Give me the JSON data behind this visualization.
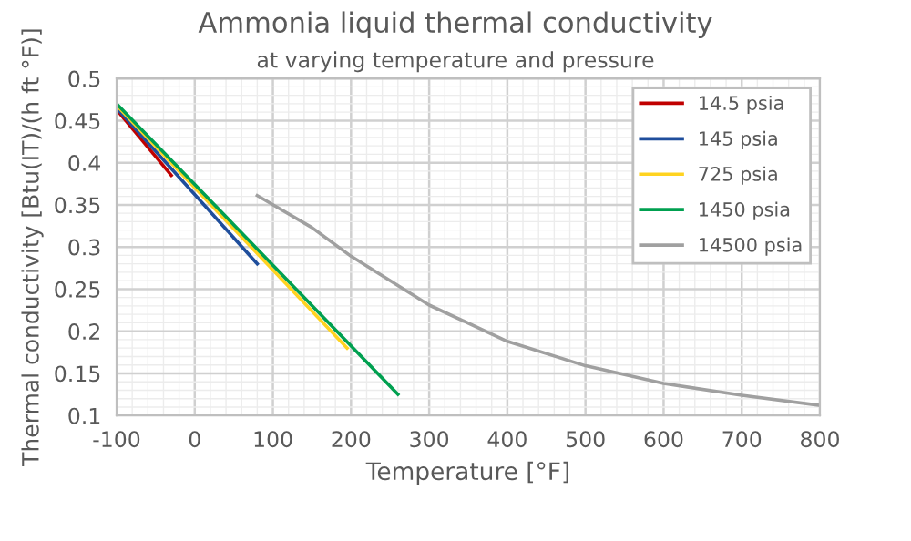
{
  "chart_data": {
    "type": "line",
    "title": "Ammonia liquid thermal conductivity",
    "subtitle": "at varying temperature and pressure",
    "xlabel": "Temperature [°F]",
    "ylabel": "Thermal conductivity [Btu(IT)/(h ft °F)]",
    "series": [
      {
        "name": "14.5 psia",
        "color": "#c00000",
        "x": [
          -100,
          -30
        ],
        "values": [
          0.463,
          0.385
        ]
      },
      {
        "name": "145 psia",
        "color": "#1f4e9c",
        "x": [
          -100,
          80
        ],
        "values": [
          0.465,
          0.28
        ]
      },
      {
        "name": "725 psia",
        "color": "#ffd320",
        "x": [
          -100,
          195
        ],
        "values": [
          0.468,
          0.18
        ]
      },
      {
        "name": "1450 psia",
        "color": "#00a050",
        "x": [
          -100,
          260
        ],
        "values": [
          0.47,
          0.125
        ]
      },
      {
        "name": "14500 psia",
        "color": "#a0a0a0",
        "x": [
          80,
          150,
          200,
          300,
          400,
          500,
          600,
          700,
          800
        ],
        "values": [
          0.361,
          0.323,
          0.289,
          0.231,
          0.188,
          0.159,
          0.138,
          0.124,
          0.112
        ]
      }
    ],
    "xlim": [
      -100,
      800
    ],
    "xticks": [
      -100,
      0,
      100,
      200,
      300,
      400,
      500,
      600,
      700,
      800
    ],
    "ylim": [
      0.1,
      0.5
    ],
    "yticks": [
      0.1,
      0.15,
      0.2,
      0.25,
      0.3,
      0.35,
      0.4,
      0.45,
      0.5
    ],
    "grid": true,
    "legend": "top right",
    "line_style": "solid",
    "marker": "none"
  }
}
